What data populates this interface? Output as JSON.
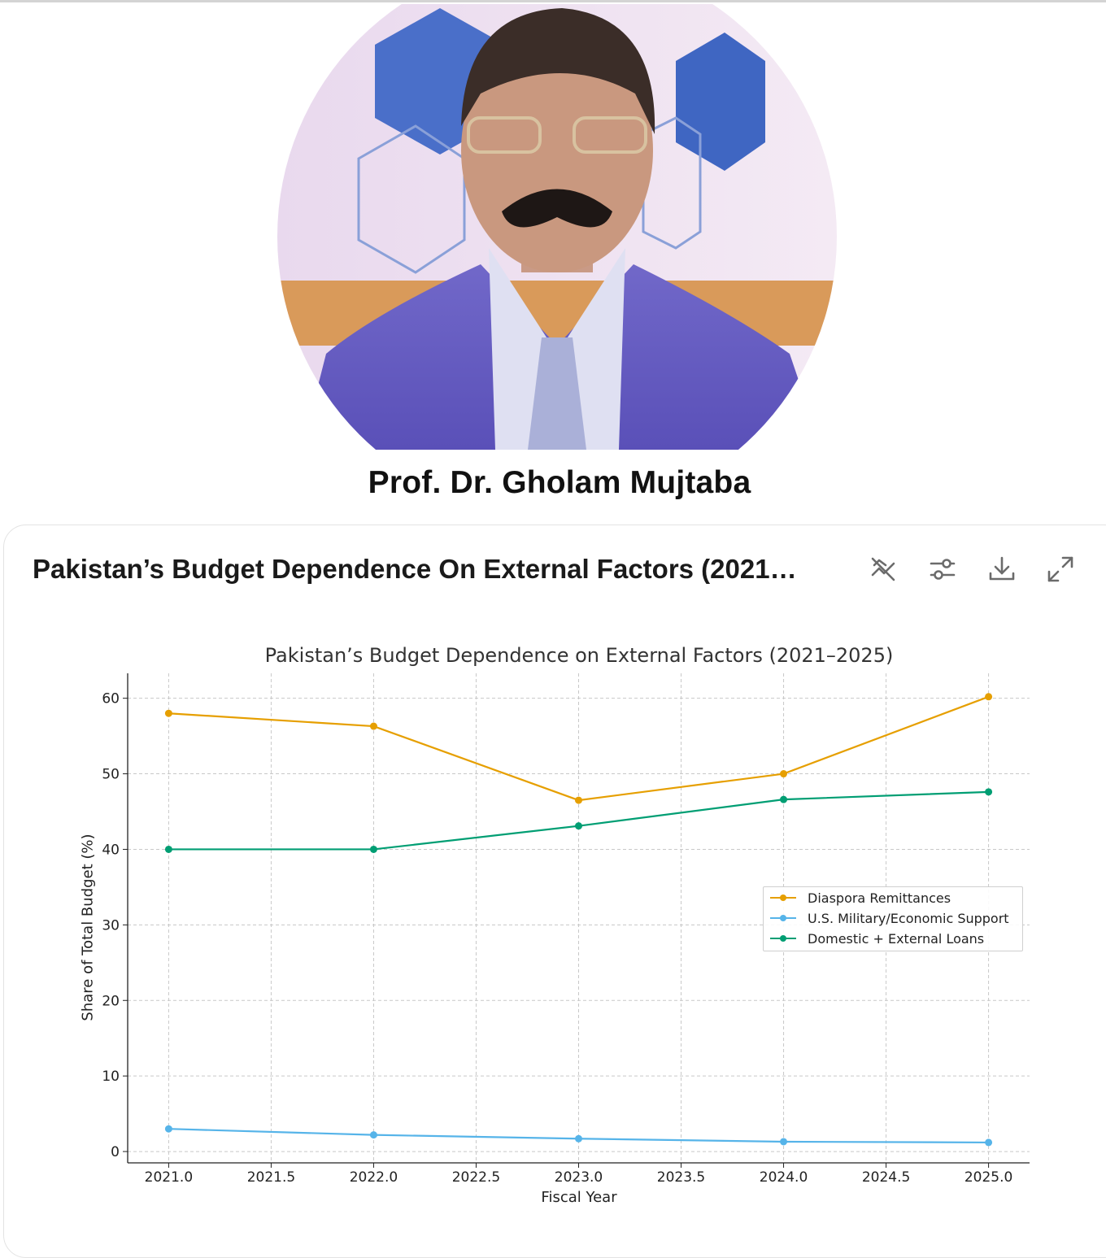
{
  "profile": {
    "name": "Prof. Dr. Gholam Mujtaba"
  },
  "card": {
    "title": "Pakistan’s Budget Dependence On External Factors (2021…",
    "tools": [
      "chart-type-icon",
      "adjust-icon",
      "download-icon",
      "expand-icon"
    ]
  },
  "colors": {
    "remittances": "#E69F00",
    "us_support": "#56B4E9",
    "loans": "#009E73"
  },
  "chart_data": {
    "type": "line",
    "title": "Pakistan’s Budget Dependence on External Factors (2021–2025)",
    "xlabel": "Fiscal Year",
    "ylabel": "Share of Total Budget (%)",
    "x": [
      2021,
      2022,
      2023,
      2024,
      2025
    ],
    "xlim": [
      2020.8,
      2025.2
    ],
    "ylim": [
      -1.5,
      63.3
    ],
    "x_ticks": [
      "2021.0",
      "2021.5",
      "2022.0",
      "2022.5",
      "2023.0",
      "2023.5",
      "2024.0",
      "2024.5",
      "2025.0"
    ],
    "y_ticks": [
      "0",
      "10",
      "20",
      "30",
      "40",
      "50",
      "60"
    ],
    "grid": true,
    "legend_position": "center-right",
    "series": [
      {
        "name": "Diaspora Remittances",
        "color": "#E69F00",
        "values": [
          58.0,
          56.3,
          46.5,
          50.0,
          60.2
        ]
      },
      {
        "name": "U.S. Military/Economic Support",
        "color": "#56B4E9",
        "values": [
          3.0,
          2.2,
          1.7,
          1.3,
          1.2
        ]
      },
      {
        "name": "Domestic + External Loans",
        "color": "#009E73",
        "values": [
          40.0,
          40.0,
          43.1,
          46.6,
          47.6
        ]
      }
    ]
  }
}
